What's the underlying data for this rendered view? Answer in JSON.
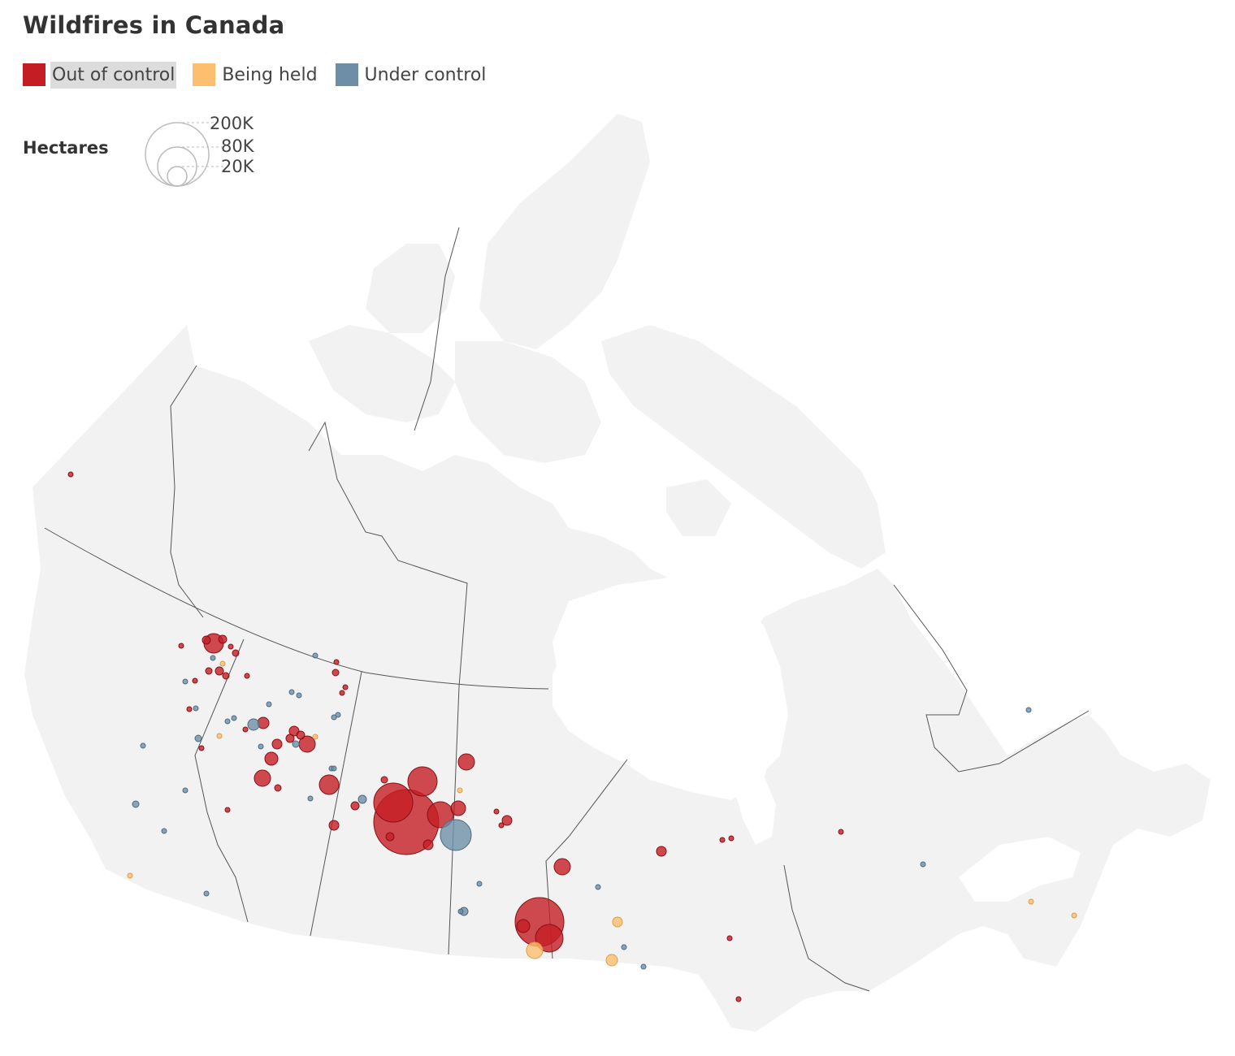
{
  "title": "Wildfires in Canada",
  "legend": {
    "items": [
      {
        "label": "Out of control",
        "color": "#c41e24"
      },
      {
        "label": "Being held",
        "color": "#fdbf6f"
      },
      {
        "label": "Under control",
        "color": "#6e8ea7"
      }
    ]
  },
  "size_legend": {
    "title": "Hectares",
    "values": [
      "200K",
      "80K",
      "20K"
    ]
  },
  "colors": {
    "land": "#f2f2f2",
    "borders": "#555555",
    "out_of_control": "#c41e24",
    "being_held": "#fdbf6f",
    "under_control": "#6e8ea7"
  }
}
